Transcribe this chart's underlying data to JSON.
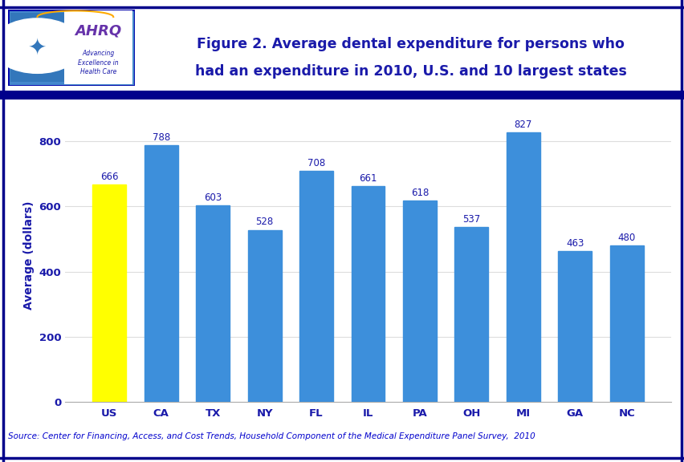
{
  "categories": [
    "US",
    "CA",
    "TX",
    "NY",
    "FL",
    "IL",
    "PA",
    "OH",
    "MI",
    "GA",
    "NC"
  ],
  "values": [
    666,
    788,
    603,
    528,
    708,
    661,
    618,
    537,
    827,
    463,
    480
  ],
  "bar_colors": [
    "#ffff00",
    "#3d8fdb",
    "#3d8fdb",
    "#3d8fdb",
    "#3d8fdb",
    "#3d8fdb",
    "#3d8fdb",
    "#3d8fdb",
    "#3d8fdb",
    "#3d8fdb",
    "#3d8fdb"
  ],
  "title_line1": "Figure 2. Average dental expenditure for persons who",
  "title_line2": "had an expenditure in 2010, U.S. and 10 largest states",
  "title_color": "#1a1aaa",
  "ylabel": "Average (dollars)",
  "ylabel_color": "#1a1aaa",
  "ylim": [
    0,
    900
  ],
  "yticks": [
    0,
    200,
    400,
    600,
    800
  ],
  "value_label_color": "#1a1aaa",
  "xtick_color": "#1a1aaa",
  "ytick_color": "#1a1aaa",
  "background_color": "#ffffff",
  "source_text": "Source: Center for Financing, Access, and Cost Trends, Household Component of the Medical Expenditure Panel Survey,  2010",
  "source_color": "#0000cc",
  "header_line_color": "#00008b",
  "value_fontsize": 8.5,
  "tick_fontsize": 9.5,
  "ylabel_fontsize": 10,
  "source_fontsize": 7.5,
  "title_fontsize": 12.5,
  "logo_bg_color": "#4488cc",
  "logo_right_bg": "#ffffff",
  "logo_left_bg": "#5599dd",
  "ahrq_color": "#7744aa"
}
